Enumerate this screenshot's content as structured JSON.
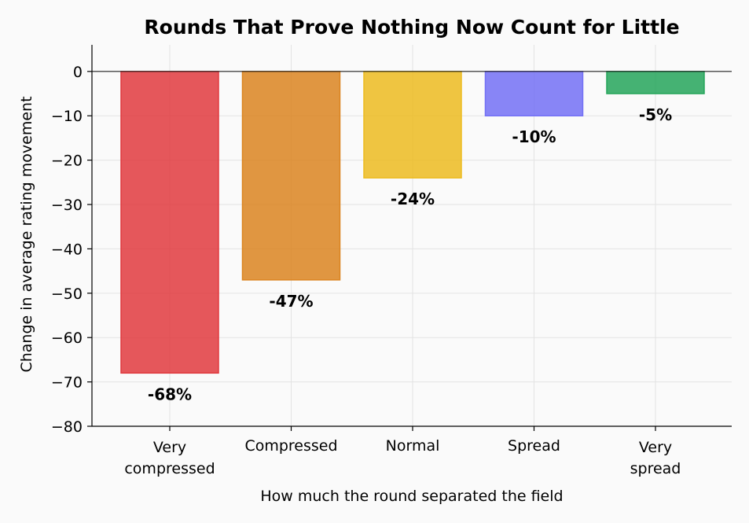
{
  "chart_data": {
    "type": "bar",
    "title": "Rounds That Prove Nothing Now Count for Little",
    "xlabel": "How much the round separated the field",
    "ylabel": "Change in average rating movement",
    "categories": [
      [
        "Very",
        "compressed"
      ],
      [
        "Compressed"
      ],
      [
        "Normal"
      ],
      [
        "Spread"
      ],
      [
        "Very",
        "spread"
      ]
    ],
    "values": [
      -68,
      -47,
      -24,
      -10,
      -5
    ],
    "data_labels": [
      "-68%",
      "-47%",
      "-24%",
      "-10%",
      "-5%"
    ],
    "colors": [
      "#e0393e",
      "#db8420",
      "#ecbb20",
      "#7370f5",
      "#25a55a"
    ],
    "ylim": [
      -80,
      6
    ],
    "yticks": [
      0,
      -10,
      -20,
      -30,
      -40,
      -50,
      -60,
      -70,
      -80
    ],
    "ytick_labels": [
      "0",
      "−10",
      "−20",
      "−30",
      "−40",
      "−50",
      "−60",
      "−70",
      "−80"
    ],
    "grid": true,
    "legend": "none"
  }
}
